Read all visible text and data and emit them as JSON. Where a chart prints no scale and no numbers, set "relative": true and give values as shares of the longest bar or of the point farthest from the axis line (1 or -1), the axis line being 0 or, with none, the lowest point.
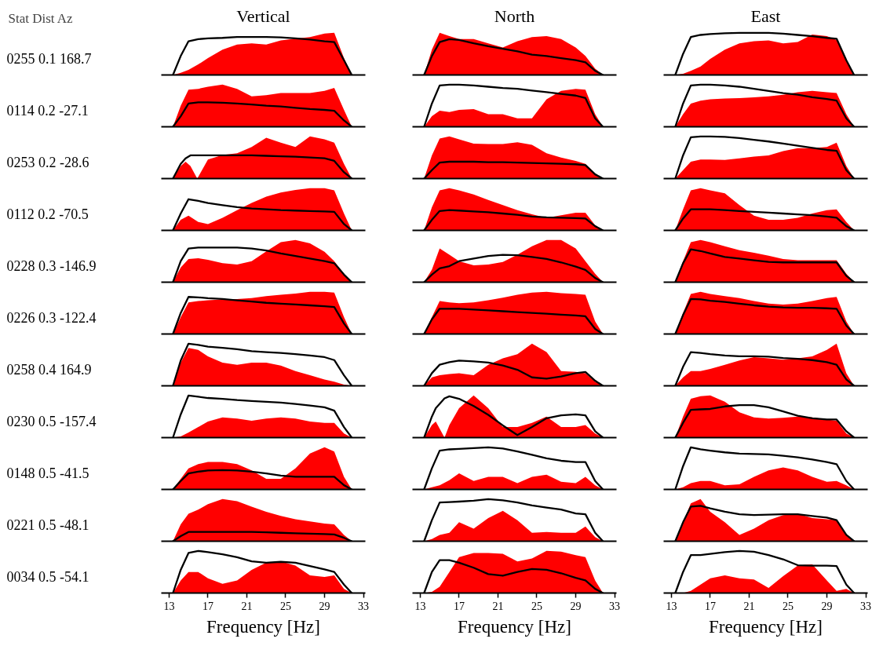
{
  "chart_data": [
    {
      "type": "area",
      "title": "Vertical",
      "ylabel": "0255 0.1 168.7",
      "annotations": [
        "Stat Dist Az"
      ],
      "relative": true,
      "tick_labels": false,
      "xlim": [
        12.2,
        33.2
      ],
      "x": [
        13.4,
        14.2,
        15,
        16,
        17,
        18.5,
        20,
        21.5,
        23,
        24.5,
        26,
        27.5,
        29,
        30,
        31,
        31.8
      ],
      "series": [
        {
          "color": "#ff0000",
          "values": [
            0,
            0.05,
            0.12,
            0.25,
            0.4,
            0.6,
            0.72,
            0.75,
            0.72,
            0.82,
            0.86,
            0.9,
            0.98,
            1,
            0.4,
            0
          ]
        },
        {
          "type": "line",
          "color": "#000000",
          "values": [
            0,
            0.45,
            0.8,
            0.85,
            0.87,
            0.88,
            0.9,
            0.9,
            0.9,
            0.89,
            0.87,
            0.84,
            0.8,
            0.78,
            0.35,
            0
          ]
        }
      ]
    },
    {
      "type": "area",
      "title": "North",
      "relative": true,
      "tick_labels": false,
      "xlim": [
        12.2,
        33.2
      ],
      "x": [
        13.4,
        14.2,
        15,
        16,
        17,
        18.5,
        20,
        21.5,
        23,
        24.5,
        26,
        27.5,
        29,
        30,
        31,
        31.8
      ],
      "series": [
        {
          "color": "#ff0000",
          "values": [
            0,
            0.6,
            1.0,
            0.92,
            0.85,
            0.85,
            0.75,
            0.65,
            0.8,
            0.9,
            0.92,
            0.85,
            0.65,
            0.45,
            0.15,
            0
          ]
        },
        {
          "type": "line",
          "color": "#000000",
          "values": [
            0,
            0.45,
            0.78,
            0.85,
            0.83,
            0.75,
            0.68,
            0.62,
            0.56,
            0.48,
            0.45,
            0.4,
            0.35,
            0.3,
            0.1,
            0
          ]
        }
      ]
    },
    {
      "type": "area",
      "title": "East",
      "relative": true,
      "tick_labels": false,
      "xlim": [
        12.2,
        33.2
      ],
      "x": [
        13.4,
        14.2,
        15,
        16,
        17,
        18.5,
        20,
        21.5,
        23,
        24.5,
        26,
        27.5,
        29,
        30,
        31,
        31.8
      ],
      "series": [
        {
          "color": "#ff0000",
          "values": [
            0,
            0.03,
            0.1,
            0.2,
            0.38,
            0.6,
            0.75,
            0.8,
            0.82,
            0.75,
            0.78,
            0.96,
            0.92,
            0.83,
            0.35,
            0
          ]
        },
        {
          "type": "line",
          "color": "#000000",
          "values": [
            0,
            0.5,
            0.9,
            0.95,
            0.97,
            0.99,
            1.0,
            1.0,
            1.0,
            0.98,
            0.95,
            0.92,
            0.88,
            0.86,
            0.35,
            0
          ]
        }
      ]
    },
    {
      "type": "area",
      "ylabel": "0114 0.2 -27.1",
      "relative": true,
      "tick_labels": false,
      "xlim": [
        12.2,
        33.2
      ],
      "x": [
        13.4,
        14.2,
        15,
        16,
        17,
        18.5,
        20,
        21.5,
        23,
        24.5,
        26,
        27.5,
        29,
        30,
        31,
        31.8
      ],
      "series": [
        {
          "color": "#ff0000",
          "values": [
            0,
            0.5,
            0.88,
            0.9,
            0.95,
            1.0,
            0.9,
            0.72,
            0.75,
            0.8,
            0.8,
            0.8,
            0.85,
            0.92,
            0.4,
            0
          ]
        },
        {
          "type": "line",
          "color": "#000000",
          "values": [
            0,
            0.25,
            0.55,
            0.58,
            0.58,
            0.57,
            0.55,
            0.53,
            0.5,
            0.48,
            0.45,
            0.42,
            0.4,
            0.38,
            0.15,
            0
          ]
        }
      ]
    },
    {
      "type": "area",
      "relative": true,
      "tick_labels": false,
      "xlim": [
        12.2,
        33.2
      ],
      "x": [
        13.4,
        14.2,
        15,
        16,
        17,
        18.5,
        20,
        21.5,
        23,
        24.5,
        26,
        27.5,
        29,
        30,
        31,
        31.8
      ],
      "series": [
        {
          "color": "#ff0000",
          "values": [
            0,
            0.25,
            0.38,
            0.35,
            0.4,
            0.42,
            0.3,
            0.3,
            0.2,
            0.2,
            0.65,
            0.85,
            0.9,
            0.88,
            0.3,
            0
          ]
        },
        {
          "type": "line",
          "color": "#000000",
          "values": [
            0,
            0.55,
            0.98,
            1.0,
            1.0,
            0.98,
            0.95,
            0.92,
            0.9,
            0.86,
            0.82,
            0.78,
            0.74,
            0.68,
            0.2,
            0
          ]
        }
      ]
    },
    {
      "type": "area",
      "relative": true,
      "tick_labels": false,
      "xlim": [
        12.2,
        33.2
      ],
      "x": [
        13.4,
        14.2,
        15,
        16,
        17,
        18.5,
        20,
        21.5,
        23,
        24.5,
        26,
        27.5,
        29,
        30,
        31,
        31.8
      ],
      "series": [
        {
          "color": "#ff0000",
          "values": [
            0,
            0.3,
            0.55,
            0.62,
            0.65,
            0.67,
            0.68,
            0.7,
            0.72,
            0.76,
            0.82,
            0.85,
            0.82,
            0.8,
            0.3,
            0
          ]
        },
        {
          "type": "line",
          "color": "#000000",
          "values": [
            0,
            0.55,
            0.98,
            1.0,
            1.0,
            0.98,
            0.95,
            0.9,
            0.85,
            0.8,
            0.76,
            0.7,
            0.66,
            0.62,
            0.2,
            0
          ]
        }
      ]
    },
    {
      "type": "area",
      "ylabel": "0253 0.2 -28.6",
      "relative": true,
      "tick_labels": false,
      "xlim": [
        12.2,
        33.2
      ],
      "x": [
        13.4,
        14.2,
        14.7,
        15.2,
        15.9,
        17,
        18.5,
        20,
        21.5,
        23,
        24.5,
        26,
        27.5,
        29,
        30,
        31,
        31.8
      ],
      "series": [
        {
          "color": "#ff0000",
          "values": [
            0,
            0.3,
            0.4,
            0.3,
            0,
            0.45,
            0.56,
            0.6,
            0.75,
            0.97,
            0.85,
            0.75,
            1.0,
            0.93,
            0.85,
            0.35,
            0
          ]
        },
        {
          "type": "line",
          "color": "#000000",
          "values": [
            0,
            0.35,
            0.48,
            0.55,
            0.55,
            0.55,
            0.55,
            0.55,
            0.55,
            0.54,
            0.53,
            0.52,
            0.5,
            0.48,
            0.42,
            0.15,
            0
          ]
        }
      ]
    },
    {
      "type": "area",
      "relative": true,
      "tick_labels": false,
      "xlim": [
        12.2,
        33.2
      ],
      "x": [
        13.4,
        14.2,
        15,
        16,
        17,
        18.5,
        20,
        21.5,
        23,
        24.5,
        26,
        27.5,
        29,
        30,
        31,
        31.8
      ],
      "series": [
        {
          "color": "#ff0000",
          "values": [
            0,
            0.55,
            0.95,
            1.0,
            0.93,
            0.83,
            0.82,
            0.82,
            0.86,
            0.8,
            0.6,
            0.5,
            0.42,
            0.35,
            0.12,
            0
          ]
        },
        {
          "type": "line",
          "color": "#000000",
          "values": [
            0,
            0.2,
            0.38,
            0.4,
            0.4,
            0.4,
            0.39,
            0.39,
            0.38,
            0.37,
            0.36,
            0.35,
            0.34,
            0.32,
            0.1,
            0
          ]
        }
      ]
    },
    {
      "type": "area",
      "relative": true,
      "tick_labels": false,
      "xlim": [
        12.2,
        33.2
      ],
      "x": [
        13.4,
        14.2,
        15,
        16,
        17,
        18.5,
        20,
        21.5,
        23,
        24.5,
        26,
        27.5,
        29,
        30,
        31,
        31.8
      ],
      "series": [
        {
          "color": "#ff0000",
          "values": [
            0,
            0.2,
            0.4,
            0.45,
            0.45,
            0.44,
            0.48,
            0.52,
            0.55,
            0.65,
            0.72,
            0.72,
            0.75,
            0.85,
            0.3,
            0
          ]
        },
        {
          "type": "line",
          "color": "#000000",
          "values": [
            0,
            0.55,
            0.98,
            1.0,
            1.0,
            0.99,
            0.96,
            0.92,
            0.88,
            0.83,
            0.78,
            0.73,
            0.68,
            0.66,
            0.2,
            0
          ]
        }
      ]
    },
    {
      "type": "area",
      "ylabel": "0112 0.2 -70.5",
      "relative": true,
      "tick_labels": false,
      "xlim": [
        12.2,
        33.2
      ],
      "x": [
        13.4,
        14.2,
        15,
        16,
        17,
        18.5,
        20,
        21.5,
        23,
        24.5,
        26,
        27.5,
        29,
        30,
        31,
        31.8
      ],
      "series": [
        {
          "color": "#ff0000",
          "values": [
            0,
            0.25,
            0.35,
            0.2,
            0.15,
            0.3,
            0.48,
            0.65,
            0.8,
            0.9,
            0.96,
            1.0,
            1.0,
            0.95,
            0.4,
            0
          ]
        },
        {
          "type": "line",
          "color": "#000000",
          "values": [
            0,
            0.4,
            0.74,
            0.7,
            0.65,
            0.6,
            0.55,
            0.52,
            0.5,
            0.48,
            0.47,
            0.46,
            0.45,
            0.44,
            0.15,
            0
          ]
        }
      ]
    },
    {
      "type": "area",
      "relative": true,
      "tick_labels": false,
      "xlim": [
        12.2,
        33.2
      ],
      "x": [
        13.4,
        14.2,
        15,
        16,
        17,
        18.5,
        20,
        21.5,
        23,
        24.5,
        26,
        27.5,
        29,
        30,
        31,
        31.8
      ],
      "series": [
        {
          "color": "#ff0000",
          "values": [
            0,
            0.55,
            0.95,
            1.0,
            0.95,
            0.85,
            0.72,
            0.6,
            0.48,
            0.38,
            0.3,
            0.36,
            0.42,
            0.42,
            0.12,
            0
          ]
        },
        {
          "type": "line",
          "color": "#000000",
          "values": [
            0,
            0.25,
            0.46,
            0.48,
            0.47,
            0.45,
            0.43,
            0.4,
            0.37,
            0.33,
            0.31,
            0.3,
            0.29,
            0.28,
            0.1,
            0
          ]
        }
      ]
    },
    {
      "type": "area",
      "relative": true,
      "tick_labels": false,
      "xlim": [
        12.2,
        33.2
      ],
      "x": [
        13.4,
        14.2,
        15,
        16,
        17,
        18.5,
        20,
        21.5,
        23,
        24.5,
        26,
        27.5,
        29,
        30,
        31,
        31.8
      ],
      "series": [
        {
          "color": "#ff0000",
          "values": [
            0,
            0.5,
            0.95,
            1.0,
            0.95,
            0.88,
            0.6,
            0.35,
            0.25,
            0.25,
            0.3,
            0.4,
            0.48,
            0.5,
            0.2,
            0
          ]
        },
        {
          "type": "line",
          "color": "#000000",
          "values": [
            0,
            0.28,
            0.5,
            0.5,
            0.5,
            0.48,
            0.46,
            0.44,
            0.42,
            0.4,
            0.38,
            0.36,
            0.33,
            0.3,
            0.1,
            0
          ]
        }
      ]
    },
    {
      "type": "area",
      "ylabel": "0228 0.3 -146.9",
      "relative": true,
      "tick_labels": false,
      "xlim": [
        12.2,
        33.2
      ],
      "x": [
        13.4,
        14.2,
        15,
        16,
        17,
        18.5,
        20,
        21.5,
        23,
        24.5,
        26,
        27.5,
        29,
        30,
        31,
        31.8
      ],
      "series": [
        {
          "color": "#ff0000",
          "values": [
            0,
            0.35,
            0.55,
            0.57,
            0.53,
            0.45,
            0.42,
            0.5,
            0.73,
            0.95,
            1.0,
            0.92,
            0.72,
            0.5,
            0.2,
            0
          ]
        },
        {
          "type": "line",
          "color": "#000000",
          "values": [
            0,
            0.5,
            0.8,
            0.82,
            0.82,
            0.82,
            0.82,
            0.8,
            0.75,
            0.68,
            0.62,
            0.56,
            0.5,
            0.45,
            0.18,
            0
          ]
        }
      ]
    },
    {
      "type": "area",
      "relative": true,
      "tick_labels": false,
      "xlim": [
        12.2,
        33.2
      ],
      "x": [
        13.4,
        14.2,
        15,
        16,
        17,
        18.5,
        20,
        21.5,
        23,
        24.5,
        26,
        27.5,
        29,
        30,
        31,
        31.8
      ],
      "series": [
        {
          "color": "#ff0000",
          "values": [
            0,
            0.3,
            0.8,
            0.65,
            0.5,
            0.4,
            0.42,
            0.48,
            0.65,
            0.85,
            1.0,
            1.0,
            0.8,
            0.5,
            0.2,
            0
          ]
        },
        {
          "type": "line",
          "color": "#000000",
          "values": [
            0,
            0.18,
            0.33,
            0.38,
            0.5,
            0.56,
            0.62,
            0.65,
            0.64,
            0.6,
            0.55,
            0.47,
            0.37,
            0.29,
            0.1,
            0
          ]
        }
      ]
    },
    {
      "type": "area",
      "relative": true,
      "tick_labels": false,
      "xlim": [
        12.2,
        33.2
      ],
      "x": [
        13.4,
        14.2,
        15,
        16,
        17,
        18.5,
        20,
        21.5,
        23,
        24.5,
        26,
        27.5,
        29,
        30,
        31,
        31.8
      ],
      "series": [
        {
          "color": "#ff0000",
          "values": [
            0,
            0.5,
            0.95,
            1.0,
            0.95,
            0.85,
            0.76,
            0.7,
            0.63,
            0.55,
            0.52,
            0.52,
            0.52,
            0.52,
            0.2,
            0
          ]
        },
        {
          "type": "line",
          "color": "#000000",
          "values": [
            0,
            0.45,
            0.78,
            0.74,
            0.68,
            0.6,
            0.56,
            0.52,
            0.48,
            0.47,
            0.47,
            0.47,
            0.47,
            0.47,
            0.15,
            0
          ]
        }
      ]
    },
    {
      "type": "area",
      "ylabel": "0226 0.3 -122.4",
      "relative": true,
      "tick_labels": false,
      "xlim": [
        12.2,
        33.2
      ],
      "x": [
        13.4,
        14.2,
        15,
        16,
        17,
        18.5,
        20,
        21.5,
        23,
        24.5,
        26,
        27.5,
        29,
        30,
        31,
        31.8
      ],
      "series": [
        {
          "color": "#ff0000",
          "values": [
            0,
            0.4,
            0.75,
            0.78,
            0.8,
            0.82,
            0.83,
            0.85,
            0.9,
            0.93,
            0.96,
            1.0,
            1.0,
            0.98,
            0.4,
            0
          ]
        },
        {
          "type": "line",
          "color": "#000000",
          "values": [
            0,
            0.5,
            0.88,
            0.87,
            0.85,
            0.83,
            0.8,
            0.77,
            0.74,
            0.72,
            0.7,
            0.68,
            0.66,
            0.64,
            0.25,
            0
          ]
        }
      ]
    },
    {
      "type": "area",
      "relative": true,
      "tick_labels": false,
      "xlim": [
        12.2,
        33.2
      ],
      "x": [
        13.4,
        14.2,
        15,
        16,
        17,
        18.5,
        20,
        21.5,
        23,
        24.5,
        26,
        27.5,
        29,
        30,
        31,
        31.8
      ],
      "series": [
        {
          "color": "#ff0000",
          "values": [
            0,
            0.4,
            0.78,
            0.75,
            0.73,
            0.75,
            0.8,
            0.86,
            0.93,
            0.98,
            1.0,
            0.97,
            0.95,
            0.93,
            0.3,
            0
          ]
        },
        {
          "type": "line",
          "color": "#000000",
          "values": [
            0,
            0.35,
            0.6,
            0.6,
            0.6,
            0.58,
            0.56,
            0.54,
            0.52,
            0.5,
            0.48,
            0.46,
            0.44,
            0.42,
            0.12,
            0
          ]
        }
      ]
    },
    {
      "type": "area",
      "relative": true,
      "tick_labels": false,
      "xlim": [
        12.2,
        33.2
      ],
      "x": [
        13.4,
        14.2,
        15,
        16,
        17,
        18.5,
        20,
        21.5,
        23,
        24.5,
        26,
        27.5,
        29,
        30,
        31,
        31.8
      ],
      "series": [
        {
          "color": "#ff0000",
          "values": [
            0,
            0.5,
            0.95,
            1.0,
            0.95,
            0.9,
            0.85,
            0.78,
            0.72,
            0.7,
            0.72,
            0.78,
            0.85,
            0.88,
            0.3,
            0
          ]
        },
        {
          "type": "line",
          "color": "#000000",
          "values": [
            0,
            0.45,
            0.83,
            0.82,
            0.79,
            0.76,
            0.72,
            0.68,
            0.65,
            0.63,
            0.62,
            0.62,
            0.61,
            0.6,
            0.2,
            0
          ]
        }
      ]
    },
    {
      "type": "area",
      "ylabel": "0258 0.4 164.9",
      "relative": true,
      "tick_labels": false,
      "xlim": [
        12.2,
        33.2
      ],
      "x": [
        13.4,
        14.2,
        15,
        16,
        17,
        18.5,
        20,
        21.5,
        23,
        24.5,
        26,
        27.5,
        29,
        30,
        31,
        31.8
      ],
      "series": [
        {
          "color": "#ff0000",
          "values": [
            0,
            0.55,
            0.9,
            0.85,
            0.7,
            0.55,
            0.5,
            0.55,
            0.55,
            0.48,
            0.35,
            0.25,
            0.15,
            0.1,
            0.03,
            0
          ]
        },
        {
          "type": "line",
          "color": "#000000",
          "values": [
            0,
            0.6,
            1.0,
            0.97,
            0.93,
            0.9,
            0.87,
            0.82,
            0.8,
            0.78,
            0.75,
            0.72,
            0.68,
            0.61,
            0.25,
            0
          ]
        }
      ]
    },
    {
      "type": "area",
      "relative": true,
      "tick_labels": false,
      "xlim": [
        12.2,
        33.2
      ],
      "x": [
        13.4,
        14.2,
        15,
        16,
        17,
        18.5,
        20,
        21.5,
        23,
        24.5,
        26,
        27.5,
        29,
        30,
        31,
        31.8
      ],
      "series": [
        {
          "color": "#ff0000",
          "values": [
            0,
            0.2,
            0.25,
            0.28,
            0.3,
            0.25,
            0.5,
            0.65,
            0.75,
            1.0,
            0.8,
            0.35,
            0.33,
            0.3,
            0.1,
            0
          ]
        },
        {
          "type": "line",
          "color": "#000000",
          "values": [
            0,
            0.3,
            0.5,
            0.56,
            0.6,
            0.58,
            0.55,
            0.48,
            0.38,
            0.2,
            0.17,
            0.22,
            0.3,
            0.33,
            0.12,
            0
          ]
        }
      ]
    },
    {
      "type": "area",
      "relative": true,
      "tick_labels": false,
      "xlim": [
        12.2,
        33.2
      ],
      "x": [
        13.4,
        14.2,
        15,
        16,
        17,
        18.5,
        20,
        21.5,
        23,
        24.5,
        26,
        27.5,
        29,
        30,
        31,
        31.8
      ],
      "series": [
        {
          "color": "#ff0000",
          "values": [
            0,
            0.2,
            0.35,
            0.35,
            0.4,
            0.5,
            0.6,
            0.68,
            0.65,
            0.62,
            0.65,
            0.7,
            0.85,
            1.0,
            0.3,
            0
          ]
        },
        {
          "type": "line",
          "color": "#000000",
          "values": [
            0,
            0.45,
            0.8,
            0.78,
            0.75,
            0.72,
            0.7,
            0.7,
            0.69,
            0.66,
            0.64,
            0.61,
            0.56,
            0.5,
            0.15,
            0
          ]
        }
      ]
    },
    {
      "type": "area",
      "ylabel": "0230 0.5 -157.4",
      "relative": true,
      "tick_labels": false,
      "xlim": [
        12.2,
        33.2
      ],
      "x": [
        13.4,
        14.2,
        15,
        16,
        17,
        18.5,
        20,
        21.5,
        23,
        24.5,
        26,
        27.5,
        29,
        30,
        31,
        31.8
      ],
      "series": [
        {
          "color": "#ff0000",
          "values": [
            0,
            0.03,
            0.12,
            0.25,
            0.38,
            0.48,
            0.45,
            0.4,
            0.45,
            0.48,
            0.45,
            0.38,
            0.35,
            0.35,
            0.1,
            0
          ]
        },
        {
          "type": "line",
          "color": "#000000",
          "values": [
            0,
            0.55,
            1.0,
            0.97,
            0.94,
            0.92,
            0.89,
            0.87,
            0.85,
            0.83,
            0.8,
            0.76,
            0.72,
            0.64,
            0.25,
            0
          ]
        }
      ]
    },
    {
      "type": "area",
      "relative": true,
      "tick_labels": false,
      "xlim": [
        12.2,
        33.2
      ],
      "x": [
        13.4,
        14.2,
        14.6,
        15.5,
        16,
        17,
        18.5,
        20,
        21.5,
        23,
        24.5,
        26,
        27.5,
        29,
        30,
        31,
        31.8
      ],
      "series": [
        {
          "color": "#ff0000",
          "values": [
            0,
            0.3,
            0.38,
            0,
            0.3,
            0.7,
            1.0,
            0.7,
            0.25,
            0.25,
            0.35,
            0.5,
            0.25,
            0.25,
            0.3,
            0.1,
            0
          ]
        },
        {
          "type": "line",
          "color": "#000000",
          "values": [
            0,
            0.5,
            0.7,
            0.93,
            0.98,
            0.92,
            0.75,
            0.54,
            0.29,
            0.06,
            0.25,
            0.46,
            0.53,
            0.55,
            0.53,
            0.15,
            0
          ]
        }
      ]
    },
    {
      "type": "area",
      "relative": true,
      "tick_labels": false,
      "xlim": [
        12.2,
        33.2
      ],
      "x": [
        13.4,
        14.2,
        15,
        16,
        17,
        18.5,
        20,
        21.5,
        23,
        24.5,
        26,
        27.5,
        29,
        30,
        31,
        31.8
      ],
      "series": [
        {
          "color": "#ff0000",
          "values": [
            0,
            0.5,
            0.92,
            0.98,
            1.0,
            0.85,
            0.6,
            0.48,
            0.45,
            0.47,
            0.5,
            0.48,
            0.43,
            0.4,
            0.1,
            0
          ]
        },
        {
          "type": "line",
          "color": "#000000",
          "values": [
            0,
            0.35,
            0.66,
            0.67,
            0.68,
            0.74,
            0.77,
            0.77,
            0.72,
            0.62,
            0.52,
            0.46,
            0.43,
            0.43,
            0.15,
            0
          ]
        }
      ]
    },
    {
      "type": "area",
      "ylabel": "0148 0.5 -41.5",
      "relative": true,
      "tick_labels": false,
      "xlim": [
        12.2,
        33.2
      ],
      "x": [
        13.4,
        14.2,
        15,
        16,
        17,
        18.5,
        20,
        21.5,
        23,
        24.5,
        26,
        27.5,
        29,
        30,
        31,
        31.8
      ],
      "series": [
        {
          "color": "#ff0000",
          "values": [
            0,
            0.25,
            0.5,
            0.6,
            0.65,
            0.65,
            0.6,
            0.45,
            0.25,
            0.25,
            0.5,
            0.85,
            1.0,
            0.9,
            0.3,
            0
          ]
        },
        {
          "type": "line",
          "color": "#000000",
          "values": [
            0,
            0.2,
            0.38,
            0.42,
            0.45,
            0.46,
            0.45,
            0.42,
            0.38,
            0.33,
            0.3,
            0.3,
            0.3,
            0.3,
            0.1,
            0
          ]
        }
      ]
    },
    {
      "type": "area",
      "relative": true,
      "tick_labels": false,
      "xlim": [
        12.2,
        33.2
      ],
      "x": [
        13.4,
        14.2,
        15,
        16,
        17,
        18.5,
        20,
        21.5,
        23,
        24.5,
        26,
        27.5,
        29,
        30,
        31,
        31.8
      ],
      "series": [
        {
          "color": "#ff0000",
          "values": [
            0,
            0.05,
            0.1,
            0.22,
            0.38,
            0.2,
            0.3,
            0.3,
            0.15,
            0.3,
            0.35,
            0.18,
            0.15,
            0.3,
            0.1,
            0
          ]
        },
        {
          "type": "line",
          "color": "#000000",
          "values": [
            0,
            0.5,
            0.92,
            0.95,
            0.96,
            0.98,
            1.0,
            0.97,
            0.9,
            0.82,
            0.74,
            0.68,
            0.65,
            0.65,
            0.2,
            0
          ]
        }
      ]
    },
    {
      "type": "area",
      "relative": true,
      "tick_labels": false,
      "xlim": [
        12.2,
        33.2
      ],
      "x": [
        13.4,
        14.2,
        15,
        16,
        17,
        18.5,
        20,
        21.5,
        23,
        24.5,
        26,
        27.5,
        29,
        30,
        31,
        31.8
      ],
      "series": [
        {
          "color": "#ff0000",
          "values": [
            0,
            0.05,
            0.15,
            0.2,
            0.2,
            0.1,
            0.12,
            0.3,
            0.45,
            0.52,
            0.45,
            0.3,
            0.18,
            0.2,
            0.1,
            0
          ]
        },
        {
          "type": "line",
          "color": "#000000",
          "values": [
            0,
            0.55,
            1.0,
            0.95,
            0.92,
            0.88,
            0.85,
            0.84,
            0.83,
            0.8,
            0.76,
            0.71,
            0.65,
            0.6,
            0.2,
            0
          ]
        }
      ]
    },
    {
      "type": "area",
      "ylabel": "0221 0.5 -48.1",
      "relative": true,
      "tick_labels": false,
      "xlim": [
        12.2,
        33.2
      ],
      "x": [
        13.4,
        14.2,
        15,
        16,
        17,
        18.5,
        20,
        21.5,
        23,
        24.5,
        26,
        27.5,
        29,
        30,
        31,
        31.8
      ],
      "series": [
        {
          "color": "#ff0000",
          "values": [
            0,
            0.4,
            0.65,
            0.75,
            0.88,
            1.0,
            0.95,
            0.82,
            0.7,
            0.6,
            0.52,
            0.47,
            0.42,
            0.4,
            0.15,
            0
          ]
        },
        {
          "type": "line",
          "color": "#000000",
          "values": [
            0,
            0.12,
            0.22,
            0.22,
            0.22,
            0.22,
            0.22,
            0.22,
            0.21,
            0.2,
            0.19,
            0.18,
            0.17,
            0.16,
            0.08,
            0
          ]
        }
      ]
    },
    {
      "type": "area",
      "relative": true,
      "tick_labels": false,
      "xlim": [
        12.2,
        33.2
      ],
      "x": [
        13.4,
        14.2,
        15,
        16,
        17,
        18.5,
        20,
        21.5,
        23,
        24.5,
        26,
        27.5,
        29,
        30,
        31,
        31.8
      ],
      "series": [
        {
          "color": "#ff0000",
          "values": [
            0,
            0.05,
            0.15,
            0.2,
            0.45,
            0.3,
            0.55,
            0.72,
            0.5,
            0.2,
            0.22,
            0.2,
            0.2,
            0.35,
            0.1,
            0
          ]
        },
        {
          "type": "line",
          "color": "#000000",
          "values": [
            0,
            0.5,
            0.92,
            0.93,
            0.94,
            0.96,
            1.0,
            0.97,
            0.92,
            0.85,
            0.8,
            0.75,
            0.66,
            0.64,
            0.2,
            0
          ]
        }
      ]
    },
    {
      "type": "area",
      "relative": true,
      "tick_labels": false,
      "xlim": [
        12.2,
        33.2
      ],
      "x": [
        13.4,
        14.2,
        15,
        16,
        17,
        18.5,
        20,
        21.5,
        23,
        24.5,
        26,
        27.5,
        29,
        30,
        31,
        31.8
      ],
      "series": [
        {
          "color": "#ff0000",
          "values": [
            0,
            0.45,
            0.9,
            1.0,
            0.7,
            0.45,
            0.15,
            0.3,
            0.5,
            0.62,
            0.65,
            0.55,
            0.52,
            0.5,
            0.15,
            0
          ]
        },
        {
          "type": "line",
          "color": "#000000",
          "values": [
            0,
            0.45,
            0.82,
            0.84,
            0.78,
            0.7,
            0.64,
            0.62,
            0.63,
            0.64,
            0.64,
            0.6,
            0.56,
            0.5,
            0.15,
            0
          ]
        }
      ]
    },
    {
      "type": "area",
      "ylabel": "0034 0.5 -54.1",
      "xlabel": "Frequency [Hz]",
      "relative": true,
      "tick_labels": "x",
      "xlim": [
        12.2,
        33.2
      ],
      "xticks": [
        13,
        17,
        21,
        25,
        29,
        33
      ],
      "x": [
        13.4,
        14.2,
        15,
        16,
        17,
        18.5,
        20,
        21.5,
        23,
        24.5,
        26,
        27.5,
        29,
        30,
        31,
        31.8
      ],
      "series": [
        {
          "color": "#ff0000",
          "values": [
            0,
            0.3,
            0.5,
            0.5,
            0.35,
            0.22,
            0.3,
            0.55,
            0.72,
            0.75,
            0.65,
            0.42,
            0.38,
            0.42,
            0.1,
            0
          ]
        },
        {
          "type": "line",
          "color": "#000000",
          "values": [
            0,
            0.55,
            0.95,
            1.0,
            0.97,
            0.92,
            0.85,
            0.75,
            0.72,
            0.74,
            0.72,
            0.64,
            0.56,
            0.5,
            0.2,
            0
          ]
        }
      ]
    },
    {
      "type": "area",
      "xlabel": "Frequency [Hz]",
      "relative": true,
      "tick_labels": "x",
      "xlim": [
        12.2,
        33.2
      ],
      "xticks": [
        13,
        17,
        21,
        25,
        29,
        33
      ],
      "x": [
        13.4,
        14.2,
        15,
        16,
        17,
        18.5,
        20,
        21.5,
        23,
        24.5,
        26,
        27.5,
        29,
        30,
        31,
        31.8
      ],
      "series": [
        {
          "color": "#ff0000",
          "values": [
            0,
            0.03,
            0.15,
            0.5,
            0.85,
            0.95,
            0.95,
            0.93,
            0.75,
            0.82,
            1.0,
            0.98,
            0.9,
            0.85,
            0.3,
            0
          ]
        },
        {
          "type": "line",
          "color": "#000000",
          "values": [
            0,
            0.5,
            0.78,
            0.78,
            0.72,
            0.6,
            0.45,
            0.41,
            0.5,
            0.57,
            0.55,
            0.47,
            0.36,
            0.3,
            0.1,
            0
          ]
        }
      ]
    },
    {
      "type": "area",
      "xlabel": "Frequency [Hz]",
      "relative": true,
      "tick_labels": "x",
      "xlim": [
        12.2,
        33.2
      ],
      "xticks": [
        13,
        17,
        21,
        25,
        29,
        33
      ],
      "x": [
        13.4,
        14.2,
        15,
        16,
        17,
        18.5,
        20,
        21.5,
        23,
        24.5,
        26,
        27.5,
        29,
        30,
        31,
        31.8
      ],
      "series": [
        {
          "color": "#ff0000",
          "values": [
            0,
            0,
            0.05,
            0.2,
            0.35,
            0.42,
            0.35,
            0.32,
            0.12,
            0.4,
            0.65,
            0.68,
            0.3,
            0.05,
            0.1,
            0
          ]
        },
        {
          "type": "line",
          "color": "#000000",
          "values": [
            0,
            0.5,
            0.9,
            0.9,
            0.93,
            0.97,
            1.0,
            0.98,
            0.9,
            0.8,
            0.66,
            0.65,
            0.65,
            0.64,
            0.2,
            0
          ]
        }
      ]
    }
  ]
}
